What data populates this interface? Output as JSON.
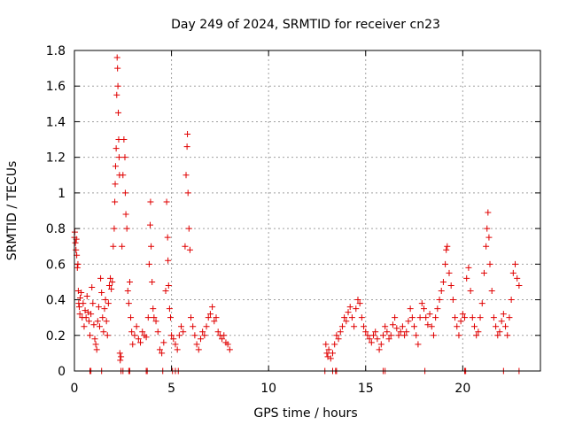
{
  "chart_data": {
    "type": "scatter",
    "title": "Day 249 of 2024, SRMTID for receiver cn23",
    "xlabel": "GPS time / hours",
    "ylabel": "SRMTID / TECUs",
    "xlim": [
      0,
      24
    ],
    "ylim": [
      0,
      1.8
    ],
    "xticks": [
      0,
      5,
      10,
      15,
      20
    ],
    "xtick_labels": [
      "0",
      "5",
      "10",
      "15",
      "20"
    ],
    "yticks": [
      0,
      0.2,
      0.4,
      0.6,
      0.8,
      1.0,
      1.2,
      1.4,
      1.6,
      1.8
    ],
    "ytick_labels": [
      "0",
      "0.2",
      "0.4",
      "0.6",
      "0.8",
      "1",
      "1.2",
      "1.4",
      "1.6",
      "1.8"
    ],
    "grid": true,
    "marker": "+",
    "color": "#e00000",
    "series": [
      {
        "name": "SRMTID",
        "points": [
          [
            0.0,
            0.75
          ],
          [
            0.02,
            0.78
          ],
          [
            0.05,
            0.72
          ],
          [
            0.08,
            0.68
          ],
          [
            0.1,
            0.74
          ],
          [
            0.12,
            0.65
          ],
          [
            0.15,
            0.58
          ],
          [
            0.18,
            0.6
          ],
          [
            0.2,
            0.45
          ],
          [
            0.22,
            0.38
          ],
          [
            0.25,
            0.36
          ],
          [
            0.28,
            0.32
          ],
          [
            0.3,
            0.41
          ],
          [
            0.35,
            0.44
          ],
          [
            0.4,
            0.3
          ],
          [
            0.45,
            0.38
          ],
          [
            0.5,
            0.25
          ],
          [
            0.55,
            0.34
          ],
          [
            0.6,
            0.3
          ],
          [
            0.65,
            0.42
          ],
          [
            0.7,
            0.33
          ],
          [
            0.75,
            0.28
          ],
          [
            0.8,
            0.2
          ],
          [
            0.85,
            0.32
          ],
          [
            0.9,
            0.47
          ],
          [
            0.95,
            0.38
          ],
          [
            1.0,
            0.26
          ],
          [
            1.05,
            0.18
          ],
          [
            1.1,
            0.15
          ],
          [
            1.15,
            0.12
          ],
          [
            1.2,
            0.28
          ],
          [
            1.25,
            0.36
          ],
          [
            1.3,
            0.25
          ],
          [
            1.35,
            0.52
          ],
          [
            1.4,
            0.44
          ],
          [
            1.45,
            0.3
          ],
          [
            1.5,
            0.22
          ],
          [
            1.55,
            0.35
          ],
          [
            1.6,
            0.4
          ],
          [
            1.65,
            0.28
          ],
          [
            1.7,
            0.2
          ],
          [
            1.75,
            0.38
          ],
          [
            1.8,
            0.48
          ],
          [
            1.85,
            0.52
          ],
          [
            1.9,
            0.46
          ],
          [
            1.95,
            0.5
          ],
          [
            2.0,
            0.7
          ],
          [
            2.05,
            0.8
          ],
          [
            2.08,
            0.95
          ],
          [
            2.1,
            1.05
          ],
          [
            2.12,
            1.15
          ],
          [
            2.15,
            1.25
          ],
          [
            2.18,
            1.55
          ],
          [
            2.2,
            1.76
          ],
          [
            2.22,
            1.7
          ],
          [
            2.24,
            1.6
          ],
          [
            2.26,
            1.45
          ],
          [
            2.28,
            1.3
          ],
          [
            2.3,
            1.2
          ],
          [
            2.32,
            1.1
          ],
          [
            2.34,
            0.1
          ],
          [
            2.36,
            0.06
          ],
          [
            2.4,
            0.08
          ],
          [
            2.45,
            0.7
          ],
          [
            2.5,
            1.1
          ],
          [
            2.55,
            1.3
          ],
          [
            2.6,
            1.2
          ],
          [
            2.62,
            1.0
          ],
          [
            2.65,
            0.88
          ],
          [
            2.7,
            0.8
          ],
          [
            2.75,
            0.45
          ],
          [
            2.8,
            0.38
          ],
          [
            2.85,
            0.5
          ],
          [
            2.9,
            0.3
          ],
          [
            2.95,
            0.22
          ],
          [
            3.0,
            0.15
          ],
          [
            3.1,
            0.2
          ],
          [
            3.2,
            0.25
          ],
          [
            3.3,
            0.18
          ],
          [
            3.4,
            0.16
          ],
          [
            3.5,
            0.22
          ],
          [
            3.6,
            0.2
          ],
          [
            3.7,
            0.19
          ],
          [
            3.8,
            0.3
          ],
          [
            3.85,
            0.6
          ],
          [
            3.9,
            0.82
          ],
          [
            3.92,
            0.95
          ],
          [
            3.95,
            0.7
          ],
          [
            4.0,
            0.5
          ],
          [
            4.05,
            0.35
          ],
          [
            4.1,
            0.3
          ],
          [
            4.2,
            0.28
          ],
          [
            4.3,
            0.22
          ],
          [
            4.4,
            0.12
          ],
          [
            4.5,
            0.1
          ],
          [
            4.6,
            0.16
          ],
          [
            4.7,
            0.45
          ],
          [
            4.75,
            0.95
          ],
          [
            4.8,
            0.75
          ],
          [
            4.82,
            0.62
          ],
          [
            4.85,
            0.48
          ],
          [
            4.9,
            0.35
          ],
          [
            4.95,
            0.3
          ],
          [
            5.0,
            0.2
          ],
          [
            5.1,
            0.18
          ],
          [
            5.2,
            0.15
          ],
          [
            5.3,
            0.12
          ],
          [
            5.4,
            0.2
          ],
          [
            5.5,
            0.25
          ],
          [
            5.6,
            0.22
          ],
          [
            5.7,
            0.7
          ],
          [
            5.75,
            1.1
          ],
          [
            5.8,
            1.26
          ],
          [
            5.82,
            1.33
          ],
          [
            5.85,
            1.0
          ],
          [
            5.9,
            0.8
          ],
          [
            5.95,
            0.68
          ],
          [
            6.0,
            0.3
          ],
          [
            6.1,
            0.25
          ],
          [
            6.2,
            0.2
          ],
          [
            6.3,
            0.15
          ],
          [
            6.4,
            0.12
          ],
          [
            6.5,
            0.18
          ],
          [
            6.6,
            0.22
          ],
          [
            6.7,
            0.2
          ],
          [
            6.8,
            0.25
          ],
          [
            6.9,
            0.3
          ],
          [
            7.0,
            0.32
          ],
          [
            7.1,
            0.36
          ],
          [
            7.2,
            0.28
          ],
          [
            7.3,
            0.3
          ],
          [
            7.4,
            0.22
          ],
          [
            7.5,
            0.2
          ],
          [
            7.6,
            0.18
          ],
          [
            7.7,
            0.2
          ],
          [
            7.8,
            0.16
          ],
          [
            7.9,
            0.15
          ],
          [
            8.0,
            0.12
          ],
          [
            12.95,
            0.15
          ],
          [
            13.0,
            0.1
          ],
          [
            13.05,
            0.08
          ],
          [
            13.1,
            0.12
          ],
          [
            13.2,
            0.07
          ],
          [
            13.3,
            0.1
          ],
          [
            13.4,
            0.15
          ],
          [
            13.5,
            0.2
          ],
          [
            13.6,
            0.18
          ],
          [
            13.7,
            0.22
          ],
          [
            13.8,
            0.25
          ],
          [
            13.9,
            0.3
          ],
          [
            14.0,
            0.28
          ],
          [
            14.1,
            0.33
          ],
          [
            14.2,
            0.36
          ],
          [
            14.3,
            0.3
          ],
          [
            14.4,
            0.25
          ],
          [
            14.5,
            0.35
          ],
          [
            14.6,
            0.4
          ],
          [
            14.7,
            0.38
          ],
          [
            14.8,
            0.3
          ],
          [
            14.9,
            0.25
          ],
          [
            15.0,
            0.22
          ],
          [
            15.1,
            0.2
          ],
          [
            15.2,
            0.18
          ],
          [
            15.3,
            0.16
          ],
          [
            15.4,
            0.2
          ],
          [
            15.5,
            0.22
          ],
          [
            15.6,
            0.18
          ],
          [
            15.7,
            0.12
          ],
          [
            15.8,
            0.15
          ],
          [
            15.9,
            0.2
          ],
          [
            16.0,
            0.25
          ],
          [
            16.1,
            0.22
          ],
          [
            16.2,
            0.18
          ],
          [
            16.3,
            0.2
          ],
          [
            16.4,
            0.26
          ],
          [
            16.5,
            0.3
          ],
          [
            16.6,
            0.24
          ],
          [
            16.7,
            0.2
          ],
          [
            16.8,
            0.22
          ],
          [
            16.9,
            0.25
          ],
          [
            17.0,
            0.2
          ],
          [
            17.1,
            0.22
          ],
          [
            17.2,
            0.28
          ],
          [
            17.3,
            0.35
          ],
          [
            17.4,
            0.3
          ],
          [
            17.5,
            0.25
          ],
          [
            17.6,
            0.2
          ],
          [
            17.7,
            0.15
          ],
          [
            17.8,
            0.3
          ],
          [
            17.9,
            0.38
          ],
          [
            18.0,
            0.35
          ],
          [
            18.1,
            0.3
          ],
          [
            18.2,
            0.26
          ],
          [
            18.3,
            0.32
          ],
          [
            18.4,
            0.25
          ],
          [
            18.5,
            0.2
          ],
          [
            18.6,
            0.3
          ],
          [
            18.7,
            0.35
          ],
          [
            18.8,
            0.4
          ],
          [
            18.9,
            0.45
          ],
          [
            19.0,
            0.5
          ],
          [
            19.1,
            0.6
          ],
          [
            19.15,
            0.68
          ],
          [
            19.2,
            0.7
          ],
          [
            19.3,
            0.55
          ],
          [
            19.4,
            0.48
          ],
          [
            19.5,
            0.4
          ],
          [
            19.6,
            0.3
          ],
          [
            19.7,
            0.25
          ],
          [
            19.8,
            0.2
          ],
          [
            19.9,
            0.28
          ],
          [
            20.0,
            0.32
          ],
          [
            20.1,
            0.3
          ],
          [
            20.2,
            0.52
          ],
          [
            20.3,
            0.58
          ],
          [
            20.4,
            0.45
          ],
          [
            20.5,
            0.3
          ],
          [
            20.6,
            0.25
          ],
          [
            20.7,
            0.2
          ],
          [
            20.8,
            0.22
          ],
          [
            20.9,
            0.3
          ],
          [
            21.0,
            0.38
          ],
          [
            21.1,
            0.55
          ],
          [
            21.2,
            0.7
          ],
          [
            21.25,
            0.8
          ],
          [
            21.3,
            0.89
          ],
          [
            21.35,
            0.75
          ],
          [
            21.4,
            0.6
          ],
          [
            21.5,
            0.45
          ],
          [
            21.6,
            0.3
          ],
          [
            21.7,
            0.25
          ],
          [
            21.8,
            0.2
          ],
          [
            21.9,
            0.22
          ],
          [
            22.0,
            0.28
          ],
          [
            22.1,
            0.32
          ],
          [
            22.2,
            0.25
          ],
          [
            22.3,
            0.2
          ],
          [
            22.4,
            0.3
          ],
          [
            22.5,
            0.4
          ],
          [
            22.6,
            0.55
          ],
          [
            22.7,
            0.6
          ],
          [
            22.8,
            0.52
          ],
          [
            22.9,
            0.48
          ],
          [
            0.8,
            0
          ],
          [
            0.85,
            0
          ],
          [
            1.4,
            0
          ],
          [
            2.4,
            0
          ],
          [
            2.5,
            0
          ],
          [
            2.8,
            0
          ],
          [
            2.85,
            0
          ],
          [
            3.7,
            0
          ],
          [
            3.75,
            0
          ],
          [
            4.55,
            0
          ],
          [
            5.05,
            0
          ],
          [
            5.2,
            0
          ],
          [
            5.35,
            0
          ],
          [
            12.9,
            0
          ],
          [
            13.3,
            0
          ],
          [
            13.45,
            0
          ],
          [
            13.5,
            0
          ],
          [
            15.9,
            0
          ],
          [
            16.0,
            0
          ],
          [
            18.05,
            0
          ],
          [
            20.1,
            0
          ],
          [
            20.15,
            0
          ],
          [
            22.1,
            0
          ],
          [
            22.9,
            0
          ]
        ]
      }
    ]
  }
}
